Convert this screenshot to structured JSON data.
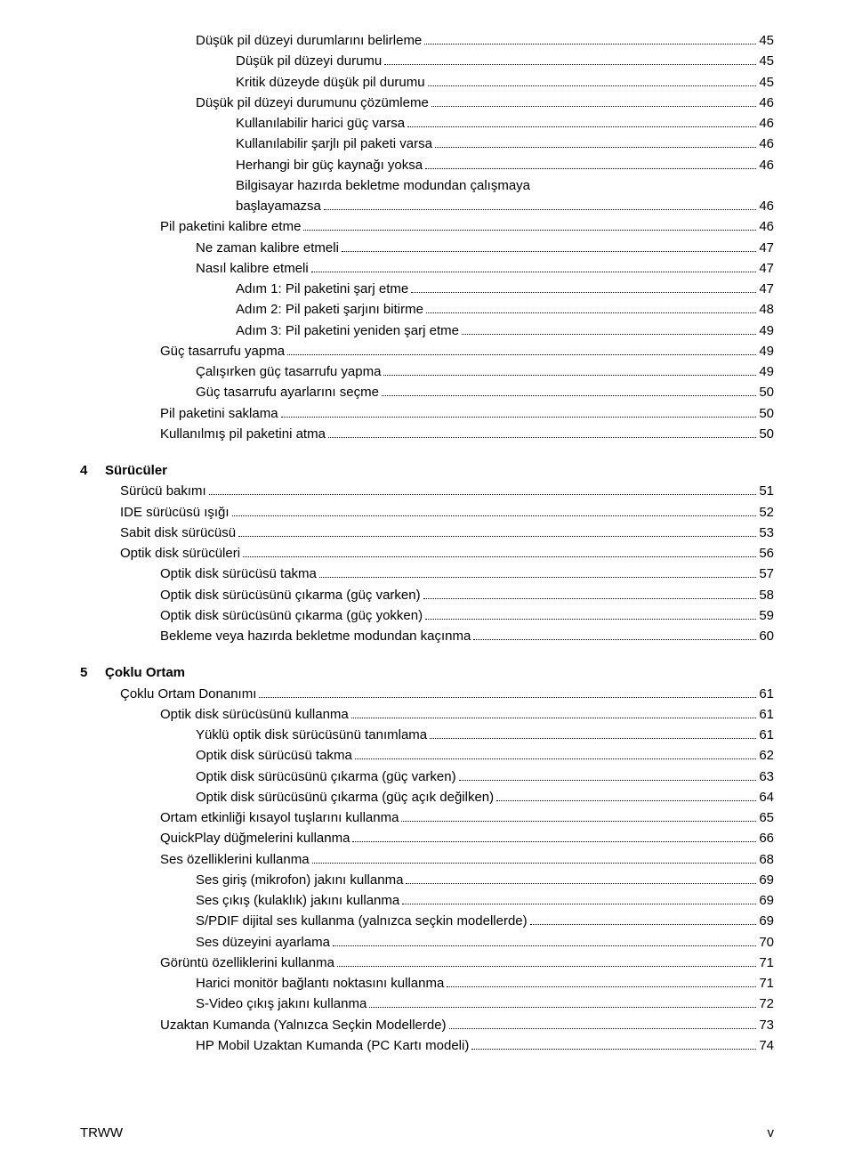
{
  "toc": {
    "top_block": [
      {
        "indent": 3,
        "title": "Düşük pil düzeyi durumlarını belirleme",
        "page": "45"
      },
      {
        "indent": 4,
        "title": "Düşük pil düzeyi durumu",
        "page": "45"
      },
      {
        "indent": 4,
        "title": "Kritik düzeyde düşük pil durumu",
        "page": "45"
      },
      {
        "indent": 3,
        "title": "Düşük pil düzeyi durumunu çözümleme",
        "page": "46"
      },
      {
        "indent": 4,
        "title": "Kullanılabilir harici güç varsa",
        "page": "46"
      },
      {
        "indent": 4,
        "title": "Kullanılabilir şarjlı pil paketi varsa",
        "page": "46"
      },
      {
        "indent": 4,
        "title": "Herhangi bir güç kaynağı yoksa",
        "page": "46"
      },
      {
        "indent": 4,
        "title": "Bilgisayar hazırda bekletme modundan çalışmaya başlayamazsa",
        "page": "46",
        "wrap": true
      },
      {
        "indent": 2,
        "title": "Pil paketini kalibre etme",
        "page": "46"
      },
      {
        "indent": 3,
        "title": "Ne zaman kalibre etmeli",
        "page": "47"
      },
      {
        "indent": 3,
        "title": "Nasıl kalibre etmeli",
        "page": "47"
      },
      {
        "indent": 4,
        "title": "Adım 1: Pil paketini şarj etme",
        "page": "47"
      },
      {
        "indent": 4,
        "title": "Adım 2: Pil paketi şarjını bitirme",
        "page": "48"
      },
      {
        "indent": 4,
        "title": "Adım 3: Pil paketini yeniden şarj etme",
        "page": "49"
      },
      {
        "indent": 2,
        "title": "Güç tasarrufu yapma",
        "page": "49"
      },
      {
        "indent": 3,
        "title": "Çalışırken güç tasarrufu yapma",
        "page": "49"
      },
      {
        "indent": 3,
        "title": "Güç tasarrufu ayarlarını seçme",
        "page": "50"
      },
      {
        "indent": 2,
        "title": "Pil paketini saklama",
        "page": "50"
      },
      {
        "indent": 2,
        "title": "Kullanılmış pil paketini atma",
        "page": "50"
      }
    ],
    "chapter4": {
      "num": "4",
      "label": "Sürücüler",
      "items": [
        {
          "indent": 1,
          "title": "Sürücü bakımı",
          "page": "51"
        },
        {
          "indent": 1,
          "title": "IDE sürücüsü ışığı",
          "page": "52"
        },
        {
          "indent": 1,
          "title": "Sabit disk sürücüsü",
          "page": "53"
        },
        {
          "indent": 1,
          "title": "Optik disk sürücüleri",
          "page": "56"
        },
        {
          "indent": 2,
          "title": "Optik disk sürücüsü takma",
          "page": "57"
        },
        {
          "indent": 2,
          "title": "Optik disk sürücüsünü çıkarma (güç varken)",
          "page": "58"
        },
        {
          "indent": 2,
          "title": "Optik disk sürücüsünü çıkarma (güç yokken)",
          "page": "59"
        },
        {
          "indent": 2,
          "title": "Bekleme veya hazırda bekletme modundan kaçınma",
          "page": "60"
        }
      ]
    },
    "chapter5": {
      "num": "5",
      "label": "Çoklu Ortam",
      "items": [
        {
          "indent": 1,
          "title": "Çoklu Ortam Donanımı",
          "page": "61"
        },
        {
          "indent": 2,
          "title": "Optik disk sürücüsünü kullanma",
          "page": "61"
        },
        {
          "indent": 3,
          "title": "Yüklü optik disk sürücüsünü tanımlama",
          "page": "61"
        },
        {
          "indent": 3,
          "title": "Optik disk sürücüsü takma",
          "page": "62"
        },
        {
          "indent": 3,
          "title": "Optik disk sürücüsünü çıkarma (güç varken)",
          "page": "63"
        },
        {
          "indent": 3,
          "title": "Optik disk sürücüsünü çıkarma (güç açık değilken)",
          "page": "64"
        },
        {
          "indent": 2,
          "title": "Ortam etkinliği kısayol tuşlarını kullanma",
          "page": "65"
        },
        {
          "indent": 2,
          "title": "QuickPlay düğmelerini kullanma",
          "page": "66"
        },
        {
          "indent": 2,
          "title": "Ses özelliklerini kullanma",
          "page": "68"
        },
        {
          "indent": 3,
          "title": "Ses giriş (mikrofon) jakını kullanma",
          "page": "69"
        },
        {
          "indent": 3,
          "title": "Ses çıkış (kulaklık) jakını kullanma",
          "page": "69"
        },
        {
          "indent": 3,
          "title": "S/PDIF dijital ses kullanma (yalnızca seçkin modellerde)",
          "page": "69"
        },
        {
          "indent": 3,
          "title": "Ses düzeyini ayarlama",
          "page": "70"
        },
        {
          "indent": 2,
          "title": "Görüntü özelliklerini kullanma",
          "page": "71"
        },
        {
          "indent": 3,
          "title": "Harici monitör bağlantı noktasını kullanma",
          "page": "71"
        },
        {
          "indent": 3,
          "title": "S-Video çıkış jakını kullanma",
          "page": "72"
        },
        {
          "indent": 2,
          "title": "Uzaktan Kumanda (Yalnızca Seçkin Modellerde)",
          "page": "73"
        },
        {
          "indent": 3,
          "title": "HP Mobil Uzaktan Kumanda (PC Kartı modeli)",
          "page": "74"
        }
      ]
    }
  },
  "footer": {
    "left": "TRWW",
    "right": "v"
  }
}
